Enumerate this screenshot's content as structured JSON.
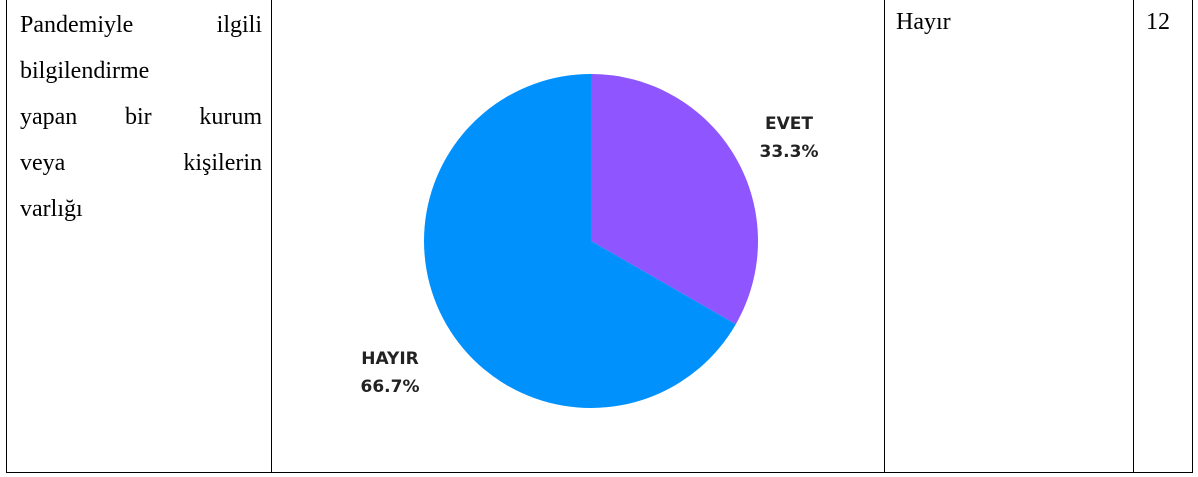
{
  "table": {
    "row": {
      "label_lines": [
        [
          "Pandemiyle",
          "ilgili"
        ],
        [
          "bilgilendirme"
        ],
        [
          "yapan",
          "bir",
          "kurum"
        ],
        [
          "veya",
          "kişilerin"
        ],
        [
          "varlığı"
        ]
      ],
      "answer": "Hayır",
      "count": "12"
    }
  },
  "chart_data": {
    "type": "pie",
    "title": "",
    "slices": [
      {
        "label": "EVET",
        "percent_label": "33.3%",
        "value": 33.3,
        "color": "#8f55fe"
      },
      {
        "label": "HAYIR",
        "percent_label": "66.7%",
        "value": 66.7,
        "color": "#0191fd"
      }
    ],
    "start_angle": "12 o'clock",
    "direction": "clockwise"
  }
}
